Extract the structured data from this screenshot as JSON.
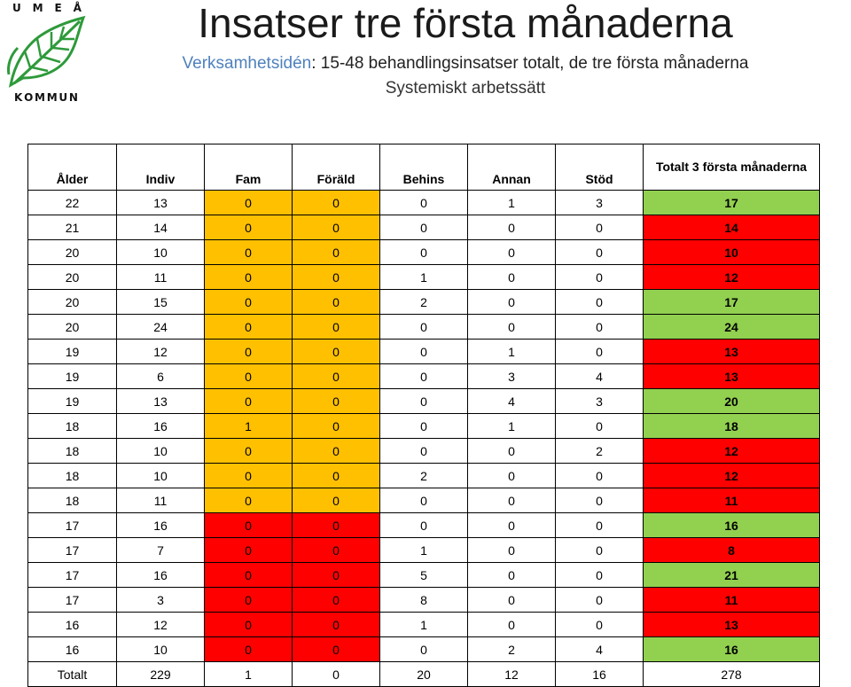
{
  "logo": {
    "top_text": "U M E Å",
    "top_letters": [
      "U",
      "M",
      "E",
      "Å"
    ],
    "bottom_letters": [
      "K",
      "O",
      "M",
      "M",
      "U",
      "N"
    ],
    "icon": "leaf-icon"
  },
  "title": "Insatser tre första månaderna",
  "subtitle": {
    "accent": "Verksamhetsidén",
    "rest": ": 15-48 behandlingsinsatser totalt, de tre första månaderna"
  },
  "subtitle2": "Systemiskt arbetssätt",
  "colors": {
    "green": "#92d050",
    "red": "#ff0000",
    "orange": "#ffc000",
    "accent_blue": "#4f81bd"
  },
  "table": {
    "headers": [
      "Ålder",
      "Indiv",
      "Fam",
      "Föräld",
      "Behins",
      "Annan",
      "Stöd",
      "Totalt 3 första månaderna"
    ],
    "rows": [
      {
        "cells": [
          "22",
          "13",
          "0",
          "0",
          "0",
          "1",
          "3",
          "17"
        ],
        "fam_color": "orange",
        "total_color": "green"
      },
      {
        "cells": [
          "21",
          "14",
          "0",
          "0",
          "0",
          "0",
          "0",
          "14"
        ],
        "fam_color": "orange",
        "total_color": "red"
      },
      {
        "cells": [
          "20",
          "10",
          "0",
          "0",
          "0",
          "0",
          "0",
          "10"
        ],
        "fam_color": "orange",
        "total_color": "red"
      },
      {
        "cells": [
          "20",
          "11",
          "0",
          "0",
          "1",
          "0",
          "0",
          "12"
        ],
        "fam_color": "orange",
        "total_color": "red"
      },
      {
        "cells": [
          "20",
          "15",
          "0",
          "0",
          "2",
          "0",
          "0",
          "17"
        ],
        "fam_color": "orange",
        "total_color": "green"
      },
      {
        "cells": [
          "20",
          "24",
          "0",
          "0",
          "0",
          "0",
          "0",
          "24"
        ],
        "fam_color": "orange",
        "total_color": "green"
      },
      {
        "cells": [
          "19",
          "12",
          "0",
          "0",
          "0",
          "1",
          "0",
          "13"
        ],
        "fam_color": "orange",
        "total_color": "red"
      },
      {
        "cells": [
          "19",
          "6",
          "0",
          "0",
          "0",
          "3",
          "4",
          "13"
        ],
        "fam_color": "orange",
        "total_color": "red"
      },
      {
        "cells": [
          "19",
          "13",
          "0",
          "0",
          "0",
          "4",
          "3",
          "20"
        ],
        "fam_color": "orange",
        "total_color": "green"
      },
      {
        "cells": [
          "18",
          "16",
          "1",
          "0",
          "0",
          "1",
          "0",
          "18"
        ],
        "fam_color": "orange",
        "total_color": "green"
      },
      {
        "cells": [
          "18",
          "10",
          "0",
          "0",
          "0",
          "0",
          "2",
          "12"
        ],
        "fam_color": "orange",
        "total_color": "red"
      },
      {
        "cells": [
          "18",
          "10",
          "0",
          "0",
          "2",
          "0",
          "0",
          "12"
        ],
        "fam_color": "orange",
        "total_color": "red"
      },
      {
        "cells": [
          "18",
          "11",
          "0",
          "0",
          "0",
          "0",
          "0",
          "11"
        ],
        "fam_color": "orange",
        "total_color": "red"
      },
      {
        "cells": [
          "17",
          "16",
          "0",
          "0",
          "0",
          "0",
          "0",
          "16"
        ],
        "fam_color": "red",
        "total_color": "green"
      },
      {
        "cells": [
          "17",
          "7",
          "0",
          "0",
          "1",
          "0",
          "0",
          "8"
        ],
        "fam_color": "red",
        "total_color": "red"
      },
      {
        "cells": [
          "17",
          "16",
          "0",
          "0",
          "5",
          "0",
          "0",
          "21"
        ],
        "fam_color": "red",
        "total_color": "green"
      },
      {
        "cells": [
          "17",
          "3",
          "0",
          "0",
          "8",
          "0",
          "0",
          "11"
        ],
        "fam_color": "red",
        "total_color": "red"
      },
      {
        "cells": [
          "16",
          "12",
          "0",
          "0",
          "1",
          "0",
          "0",
          "13"
        ],
        "fam_color": "red",
        "total_color": "red"
      },
      {
        "cells": [
          "16",
          "10",
          "0",
          "0",
          "0",
          "2",
          "4",
          "16"
        ],
        "fam_color": "red",
        "total_color": "green"
      }
    ],
    "totals": [
      "Totalt",
      "229",
      "1",
      "0",
      "20",
      "12",
      "16",
      "278"
    ]
  }
}
